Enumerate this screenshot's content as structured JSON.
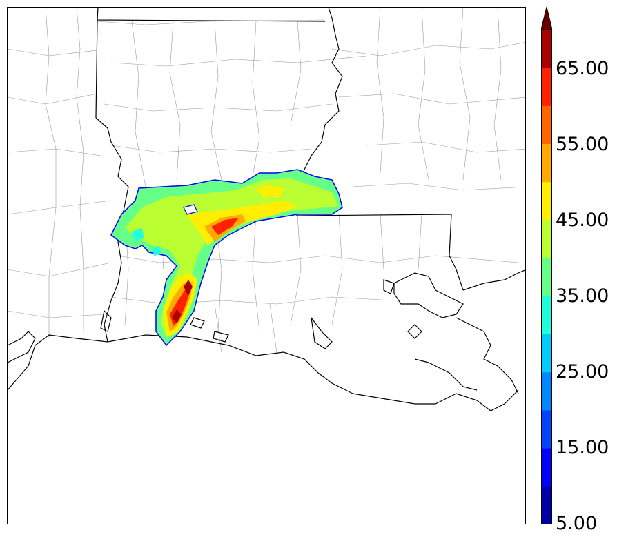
{
  "colorbar": {
    "labels": [
      "65.00",
      "55.00",
      "45.00",
      "35.00",
      "25.00",
      "15.00",
      "5.00"
    ],
    "colors": [
      "#0000a8",
      "#0000ff",
      "#0044ff",
      "#0088ff",
      "#00ccff",
      "#22ffdd",
      "#66ff88",
      "#bbff33",
      "#ffee00",
      "#ffaa00",
      "#ff6600",
      "#ff2200",
      "#aa0000",
      "#660000"
    ],
    "extend": "max"
  },
  "map": {
    "region": "Louisiana",
    "field_colors": {
      "light_green": "#66ff88",
      "yellow_green": "#bbff33",
      "yellow": "#ffee00",
      "cyan": "#22ffdd",
      "orange": "#ffaa00",
      "red_orange": "#ff2200",
      "dark_red": "#aa0000",
      "outline_blue": "#0000ff"
    }
  }
}
